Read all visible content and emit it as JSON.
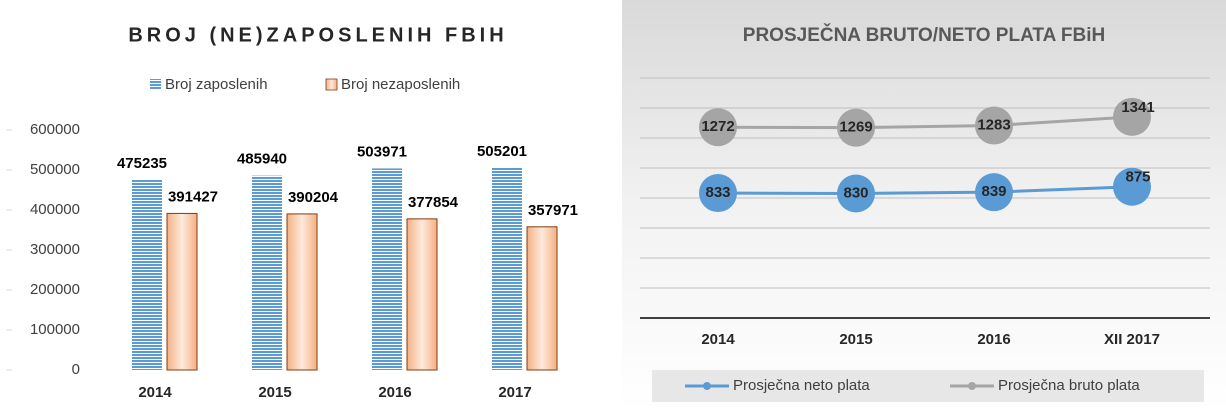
{
  "chart_data": [
    {
      "type": "bar",
      "title": "BROJ (NE)ZAPOSLENIH FBIH",
      "categories": [
        "2014",
        "2015",
        "2016",
        "2017"
      ],
      "series": [
        {
          "name": "Broj zaposlenih",
          "color": "#5b9bd5",
          "values": [
            475235,
            485940,
            503971,
            505201
          ]
        },
        {
          "name": "Broj nezaposlenih",
          "color": "#f4b183",
          "values": [
            391427,
            390204,
            377854,
            357971
          ]
        }
      ],
      "ylim": [
        0,
        600000
      ],
      "yticks": [
        0,
        100000,
        200000,
        300000,
        400000,
        500000,
        600000
      ]
    },
    {
      "type": "line",
      "title": "PROSJEČNA BRUTO/NETO PLATA FBiH",
      "categories": [
        "2014",
        "2015",
        "2016",
        "XII 2017"
      ],
      "series": [
        {
          "name": "Prosječna neto plata",
          "color": "#5b9bd5",
          "values": [
            833,
            830,
            839,
            875
          ]
        },
        {
          "name": "Prosječna bruto plata",
          "color": "#a5a5a5",
          "values": [
            1272,
            1269,
            1283,
            1341
          ]
        }
      ],
      "ylim": [
        0,
        1600
      ],
      "yticks": [
        0,
        200,
        400,
        600,
        800,
        1000,
        1200,
        1400,
        1600
      ],
      "grid": true
    }
  ]
}
